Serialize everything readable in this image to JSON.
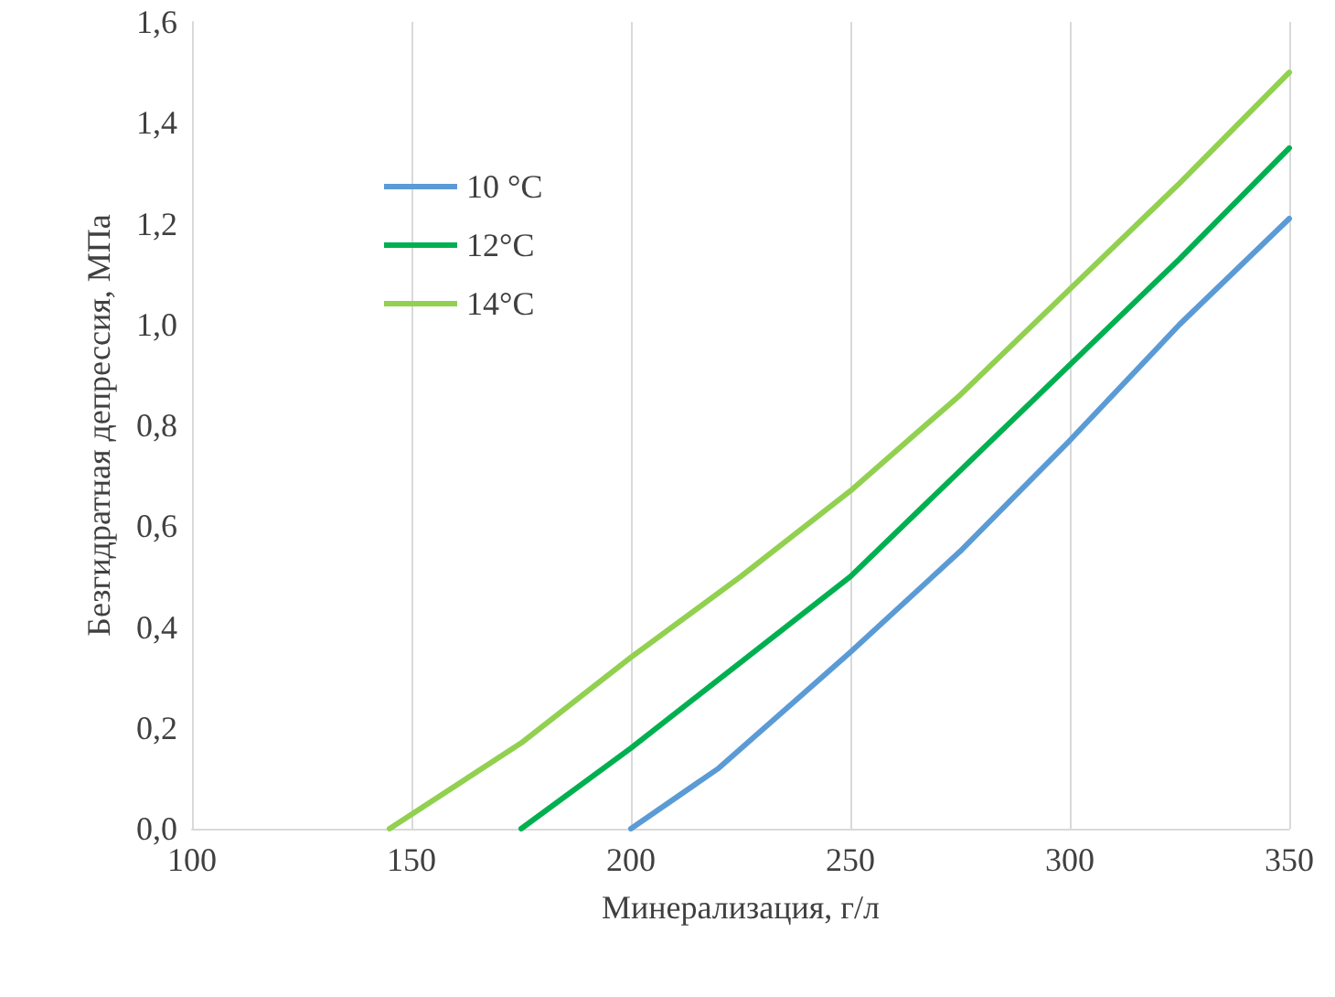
{
  "chart_data": {
    "type": "line",
    "xlabel": "Минерализация, г/л",
    "ylabel": "Безгидратная депрессия, МПа",
    "series": [
      {
        "name": "10 °C",
        "color": "#5b9bd5",
        "x": [
          200,
          220,
          250,
          275,
          300,
          325,
          350
        ],
        "values": [
          0,
          0.12,
          0.35,
          0.55,
          0.77,
          1.0,
          1.21
        ]
      },
      {
        "name": "12°C",
        "color": "#00b050",
        "x": [
          175,
          200,
          225,
          250,
          275,
          300,
          325,
          350
        ],
        "values": [
          0,
          0.16,
          0.33,
          0.5,
          0.71,
          0.92,
          1.13,
          1.35
        ]
      },
      {
        "name": "14°C",
        "color": "#92d050",
        "x": [
          145,
          175,
          200,
          225,
          250,
          275,
          300,
          325,
          350
        ],
        "values": [
          0,
          0.17,
          0.34,
          0.5,
          0.67,
          0.86,
          1.07,
          1.28,
          1.5
        ]
      }
    ],
    "xlim": [
      100,
      350
    ],
    "xticks": [
      100,
      150,
      200,
      250,
      300,
      350
    ],
    "ylim": [
      0,
      1.6
    ],
    "yticks": [
      {
        "value": 0,
        "label": "0,0"
      },
      {
        "value": 0.2,
        "label": "0,2"
      },
      {
        "value": 0.4,
        "label": "0,4"
      },
      {
        "value": 0.6,
        "label": "0,6"
      },
      {
        "value": 0.8,
        "label": "0,8"
      },
      {
        "value": 1.0,
        "label": "1,0"
      },
      {
        "value": 1.2,
        "label": "1,2"
      },
      {
        "value": 1.4,
        "label": "1,4"
      },
      {
        "value": 1.6,
        "label": "1,6"
      }
    ],
    "grid": "x",
    "legend": "top left",
    "marker": "none",
    "line_style": "solid"
  }
}
